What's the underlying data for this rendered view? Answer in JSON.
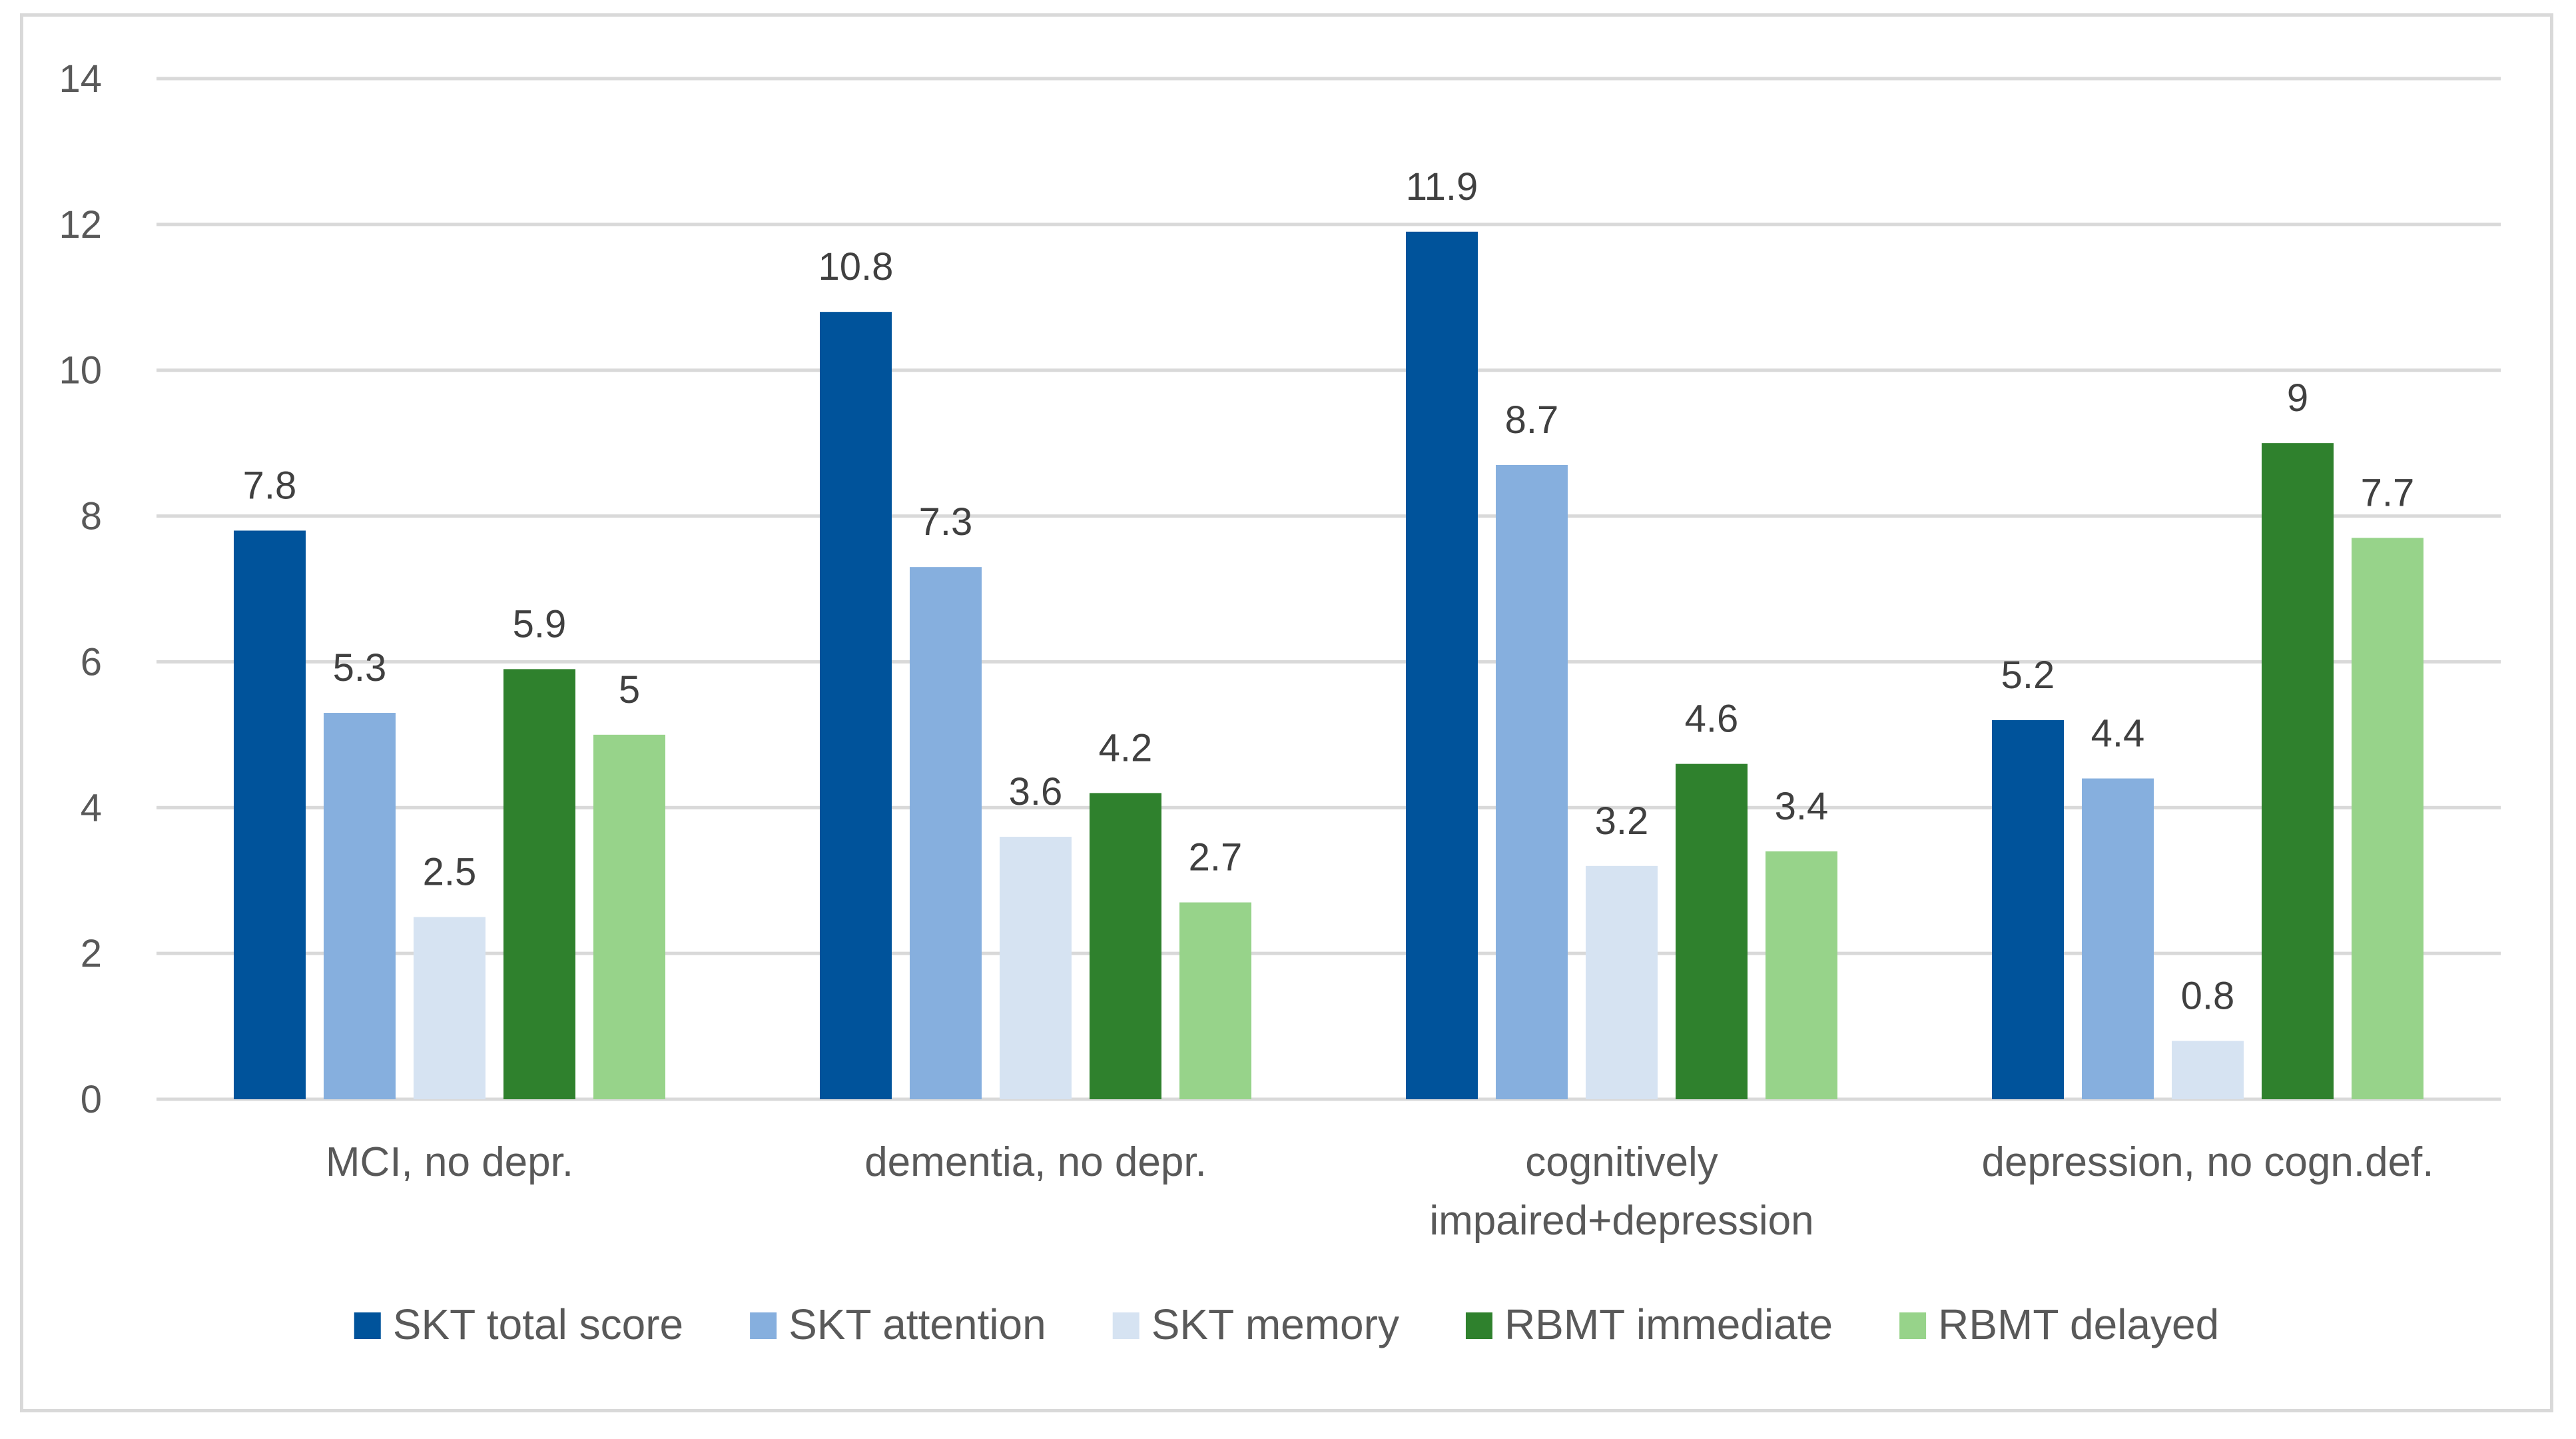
{
  "chart_data": {
    "type": "bar",
    "title": "",
    "xlabel": "",
    "ylabel": "",
    "ylim": [
      0,
      14
    ],
    "yticks": [
      0,
      2,
      4,
      6,
      8,
      10,
      12,
      14
    ],
    "grid": true,
    "legend_position": "bottom",
    "categories": [
      [
        "MCI, no depr."
      ],
      [
        "dementia, no depr."
      ],
      [
        "cognitively",
        "impaired+depression"
      ],
      [
        "depression, no cogn.def."
      ]
    ],
    "series": [
      {
        "name": "SKT total score",
        "color": "#00539b",
        "values": [
          7.8,
          10.8,
          11.9,
          5.2
        ],
        "labels": [
          "7.8",
          "10.8",
          "11.9",
          "5.2"
        ]
      },
      {
        "name": "SKT attention",
        "color": "#86afde",
        "values": [
          5.3,
          7.3,
          8.7,
          4.4
        ],
        "labels": [
          "5.3",
          "7.3",
          "8.7",
          "4.4"
        ]
      },
      {
        "name": "SKT memory",
        "color": "#d6e3f2",
        "values": [
          2.5,
          3.6,
          3.2,
          0.8
        ],
        "labels": [
          "2.5",
          "3.6",
          "3.2",
          "0.8"
        ]
      },
      {
        "name": "RBMT immediate",
        "color": "#2f812d",
        "values": [
          5.9,
          4.2,
          4.6,
          9
        ],
        "labels": [
          "5.9",
          "4.2",
          "4.6",
          "9"
        ]
      },
      {
        "name": "RBMT delayed",
        "color": "#97d38a",
        "values": [
          5,
          2.7,
          3.4,
          7.7
        ],
        "labels": [
          "5",
          "2.7",
          "3.4",
          "7.7"
        ]
      }
    ]
  }
}
